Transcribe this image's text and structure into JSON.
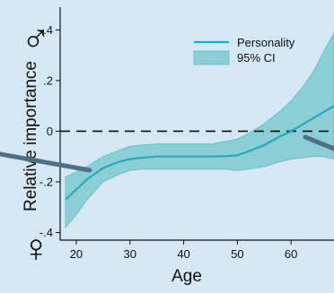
{
  "chart_data": {
    "type": "line",
    "xlabel": "Age",
    "ylabel": "Relative importance",
    "xlim": [
      17,
      68
    ],
    "ylim": [
      -0.43,
      0.49
    ],
    "x_ticks": [
      20,
      30,
      40,
      50,
      60
    ],
    "x_tick_labels": [
      "20",
      "30",
      "40",
      "50",
      "60"
    ],
    "y_ticks": [
      0.4,
      0.2,
      0,
      -0.2,
      -0.4
    ],
    "y_tick_labels": [
      ".4",
      ".2",
      "0",
      "-.2",
      "-.4"
    ],
    "reference_line_y": 0,
    "top_symbol": "♂",
    "bottom_symbol": "♀",
    "legend_position": "top-right",
    "series": [
      {
        "name": "Personality",
        "kind": "line",
        "color": "#29a9b5",
        "x": [
          18,
          20,
          22,
          25,
          28,
          30,
          32,
          35,
          38,
          40,
          42,
          45,
          48,
          50,
          52,
          55,
          58,
          60,
          62,
          64,
          66,
          68
        ],
        "y": [
          -0.27,
          -0.23,
          -0.19,
          -0.145,
          -0.12,
          -0.11,
          -0.105,
          -0.1,
          -0.1,
          -0.1,
          -0.1,
          -0.1,
          -0.098,
          -0.095,
          -0.08,
          -0.055,
          -0.02,
          0.0,
          0.025,
          0.05,
          0.075,
          0.1
        ]
      },
      {
        "name": "95% CI",
        "kind": "band",
        "color": "#72c6cb",
        "x": [
          18,
          20,
          22,
          25,
          28,
          30,
          32,
          35,
          38,
          40,
          42,
          45,
          48,
          50,
          52,
          55,
          58,
          60,
          62,
          64,
          66,
          68
        ],
        "upper": [
          -0.18,
          -0.16,
          -0.14,
          -0.1,
          -0.075,
          -0.06,
          -0.055,
          -0.05,
          -0.05,
          -0.05,
          -0.05,
          -0.05,
          -0.04,
          -0.03,
          -0.01,
          0.03,
          0.08,
          0.12,
          0.17,
          0.23,
          0.31,
          0.39
        ],
        "lower": [
          -0.38,
          -0.33,
          -0.27,
          -0.2,
          -0.17,
          -0.155,
          -0.15,
          -0.15,
          -0.15,
          -0.15,
          -0.15,
          -0.15,
          -0.15,
          -0.155,
          -0.15,
          -0.14,
          -0.12,
          -0.11,
          -0.105,
          -0.1,
          -0.1,
          -0.11
        ]
      }
    ]
  }
}
